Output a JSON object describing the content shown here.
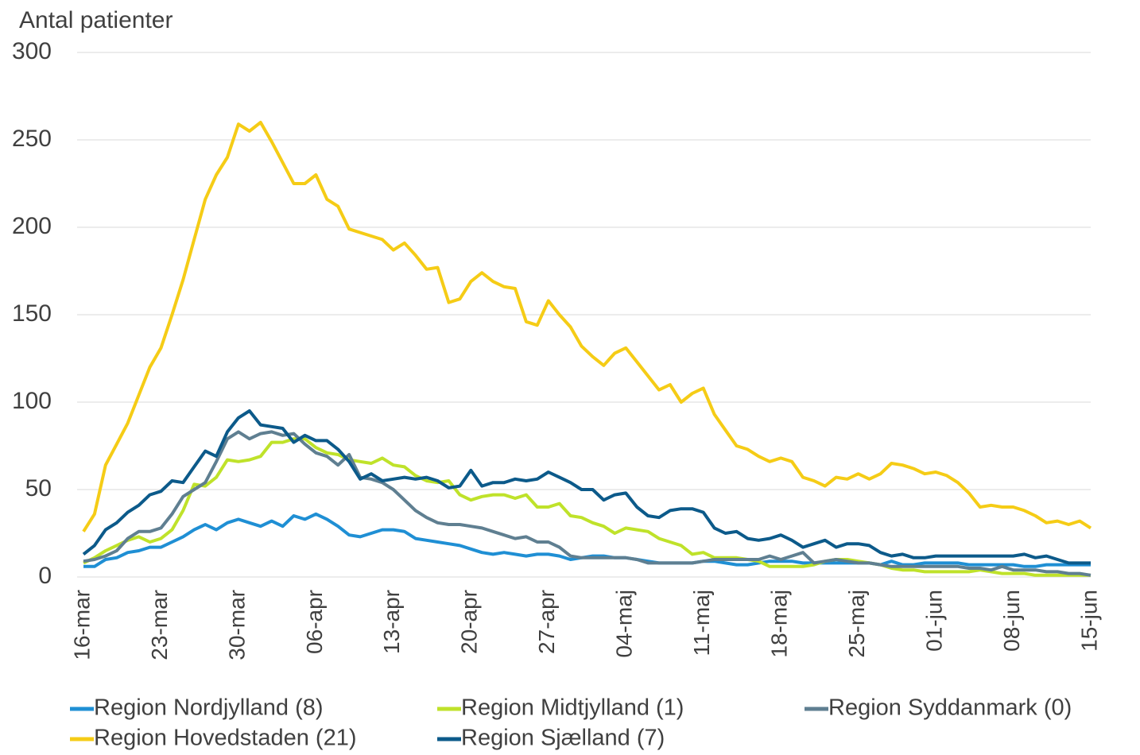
{
  "chart_data": {
    "type": "line",
    "y_label": "Antal patienter",
    "categories": [
      "16-mar",
      null,
      null,
      null,
      null,
      null,
      null,
      "23-mar",
      null,
      null,
      null,
      null,
      null,
      null,
      "30-mar",
      null,
      null,
      null,
      null,
      null,
      null,
      "06-apr",
      null,
      null,
      null,
      null,
      null,
      null,
      "13-apr",
      null,
      null,
      null,
      null,
      null,
      null,
      "20-apr",
      null,
      null,
      null,
      null,
      null,
      null,
      "27-apr",
      null,
      null,
      null,
      null,
      null,
      null,
      "04-maj",
      null,
      null,
      null,
      null,
      null,
      null,
      "11-maj",
      null,
      null,
      null,
      null,
      null,
      null,
      "18-maj",
      null,
      null,
      null,
      null,
      null,
      null,
      "25-maj",
      null,
      null,
      null,
      null,
      null,
      null,
      "01-jun",
      null,
      null,
      null,
      null,
      null,
      null,
      "08-jun",
      null,
      null,
      null,
      null,
      null,
      null,
      "15-jun"
    ],
    "series": [
      {
        "name": "Region Nordjylland (8)",
        "color": "#1f8fd4",
        "values": [
          6,
          6,
          10,
          11,
          14,
          15,
          17,
          17,
          20,
          23,
          27,
          30,
          27,
          31,
          33,
          31,
          29,
          32,
          29,
          35,
          33,
          36,
          33,
          29,
          24,
          23,
          25,
          27,
          27,
          26,
          22,
          21,
          20,
          19,
          18,
          16,
          14,
          13,
          14,
          13,
          12,
          13,
          13,
          12,
          10,
          11,
          12,
          12,
          11,
          11,
          10,
          9,
          8,
          8,
          8,
          8,
          9,
          9,
          8,
          7,
          7,
          8,
          9,
          9,
          9,
          8,
          8,
          8,
          8,
          8,
          8,
          8,
          7,
          9,
          7,
          7,
          8,
          8,
          8,
          8,
          7,
          7,
          7,
          7,
          7,
          6,
          6,
          7,
          7,
          7,
          7,
          7
        ]
      },
      {
        "name": "Region Midtjylland (1)",
        "color": "#bfe22a",
        "values": [
          8,
          11,
          15,
          18,
          21,
          23,
          20,
          22,
          27,
          38,
          53,
          52,
          57,
          67,
          66,
          67,
          69,
          77,
          77,
          79,
          79,
          74,
          71,
          70,
          67,
          66,
          65,
          68,
          64,
          63,
          58,
          55,
          54,
          55,
          47,
          44,
          46,
          47,
          47,
          45,
          47,
          40,
          40,
          42,
          35,
          34,
          31,
          29,
          25,
          28,
          27,
          26,
          22,
          20,
          18,
          13,
          14,
          11,
          11,
          11,
          10,
          9,
          6,
          6,
          6,
          6,
          7,
          9,
          10,
          10,
          9,
          8,
          7,
          5,
          4,
          4,
          3,
          3,
          3,
          3,
          3,
          4,
          3,
          2,
          2,
          2,
          1,
          1,
          1,
          1,
          1,
          1
        ]
      },
      {
        "name": "Region Syddanmark (0)",
        "color": "#5f7f91",
        "values": [
          9,
          10,
          12,
          15,
          22,
          26,
          26,
          28,
          36,
          46,
          50,
          54,
          66,
          79,
          83,
          79,
          82,
          83,
          81,
          82,
          76,
          71,
          69,
          64,
          70,
          57,
          56,
          54,
          50,
          44,
          38,
          34,
          31,
          30,
          30,
          29,
          28,
          26,
          24,
          22,
          23,
          20,
          20,
          17,
          12,
          11,
          11,
          11,
          11,
          11,
          10,
          8,
          8,
          8,
          8,
          8,
          9,
          10,
          10,
          10,
          10,
          10,
          12,
          10,
          12,
          14,
          8,
          9,
          10,
          9,
          8,
          8,
          7,
          6,
          6,
          6,
          6,
          6,
          6,
          6,
          5,
          5,
          4,
          6,
          4,
          4,
          4,
          3,
          3,
          2,
          2,
          1
        ]
      },
      {
        "name": "Region Hovedstaden (21)",
        "color": "#f5cc16",
        "values": [
          26,
          36,
          64,
          76,
          88,
          104,
          120,
          131,
          150,
          170,
          193,
          216,
          230,
          240,
          259,
          255,
          260,
          249,
          237,
          225,
          225,
          230,
          216,
          212,
          199,
          197,
          195,
          193,
          187,
          191,
          184,
          176,
          177,
          157,
          159,
          169,
          174,
          169,
          166,
          165,
          146,
          144,
          158,
          150,
          143,
          132,
          126,
          121,
          128,
          131,
          123,
          115,
          107,
          110,
          100,
          105,
          108,
          93,
          84,
          75,
          73,
          69,
          66,
          68,
          66,
          57,
          55,
          52,
          57,
          56,
          59,
          56,
          59,
          65,
          64,
          62,
          59,
          60,
          58,
          54,
          48,
          40,
          41,
          40,
          40,
          38,
          35,
          31,
          32,
          30,
          32,
          28
        ]
      },
      {
        "name": "Region Sjælland (7)",
        "color": "#0c5a8a",
        "values": [
          13,
          18,
          27,
          31,
          37,
          41,
          47,
          49,
          55,
          54,
          63,
          72,
          69,
          83,
          91,
          95,
          87,
          86,
          85,
          77,
          81,
          78,
          78,
          73,
          66,
          56,
          59,
          55,
          56,
          57,
          56,
          57,
          55,
          51,
          52,
          61,
          52,
          54,
          54,
          56,
          55,
          56,
          60,
          57,
          54,
          50,
          50,
          44,
          47,
          48,
          40,
          35,
          34,
          38,
          39,
          39,
          37,
          28,
          25,
          26,
          22,
          21,
          22,
          24,
          21,
          17,
          19,
          21,
          17,
          19,
          19,
          18,
          14,
          12,
          13,
          11,
          11,
          12,
          12,
          12,
          12,
          12,
          12,
          12,
          12,
          13,
          11,
          12,
          10,
          8,
          8,
          8
        ]
      }
    ],
    "ylim": [
      0,
      300
    ],
    "yticks": [
      0,
      50,
      100,
      150,
      200,
      250,
      300
    ],
    "grid": true
  }
}
